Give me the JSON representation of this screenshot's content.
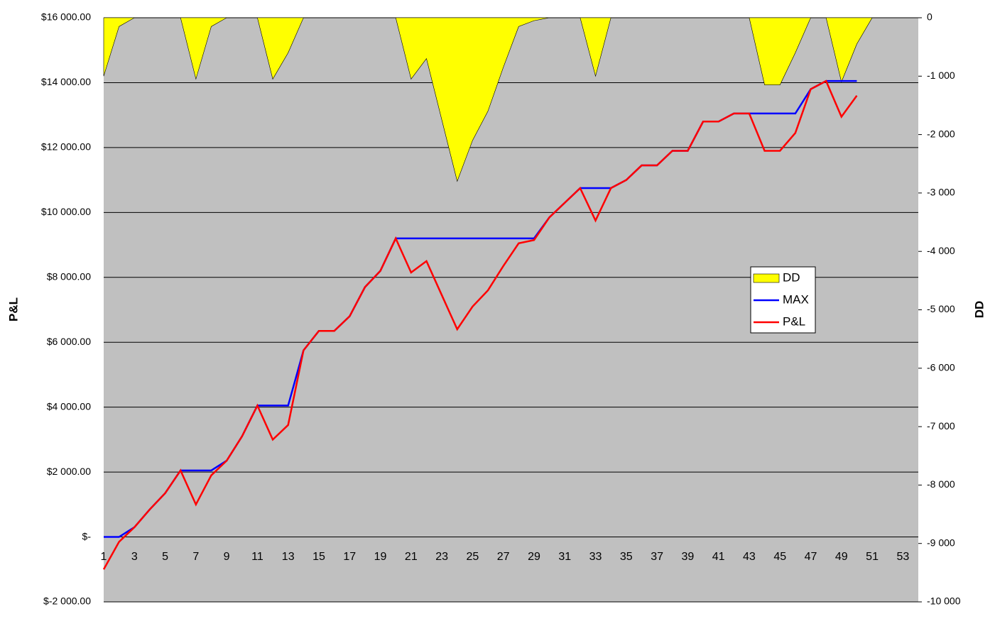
{
  "chart_data": {
    "type": "line",
    "categories": [
      1,
      null,
      3,
      null,
      5,
      null,
      7,
      null,
      9,
      null,
      11,
      null,
      13,
      null,
      15,
      null,
      17,
      null,
      19,
      null,
      21,
      null,
      23,
      null,
      25,
      null,
      27,
      null,
      29,
      null,
      31,
      null,
      33,
      null,
      35,
      null,
      37,
      null,
      39,
      null,
      41,
      null,
      43,
      null,
      45,
      null,
      47,
      null,
      49,
      null,
      51,
      null,
      53,
      null
    ],
    "ylabel": "P&L",
    "y2label": "DD",
    "ylim": [
      -2000,
      16000
    ],
    "yticks": [
      {
        "value": -2000,
        "label": "$-2 000.00"
      },
      {
        "value": 0,
        "label": "$-"
      },
      {
        "value": 2000,
        "label": "$2 000.00"
      },
      {
        "value": 4000,
        "label": "$4 000.00"
      },
      {
        "value": 6000,
        "label": "$6 000.00"
      },
      {
        "value": 8000,
        "label": "$8 000.00"
      },
      {
        "value": 10000,
        "label": "$10 000.00"
      },
      {
        "value": 12000,
        "label": "$12 000.00"
      },
      {
        "value": 14000,
        "label": "$14 000.00"
      },
      {
        "value": 16000,
        "label": "$16 000.00"
      }
    ],
    "y2lim": [
      -10000,
      0
    ],
    "y2ticks": [
      {
        "value": -10000,
        "label": "-10 000"
      },
      {
        "value": -9000,
        "label": "-9 000"
      },
      {
        "value": -8000,
        "label": "-8 000"
      },
      {
        "value": -7000,
        "label": "-7 000"
      },
      {
        "value": -6000,
        "label": "-6 000"
      },
      {
        "value": -5000,
        "label": "-5 000"
      },
      {
        "value": -4000,
        "label": "-4 000"
      },
      {
        "value": -3000,
        "label": "-3 000"
      },
      {
        "value": -2000,
        "label": "-2 000"
      },
      {
        "value": -1000,
        "label": "-1 000"
      },
      0
    ],
    "grid": true,
    "series": [
      {
        "name": "DD",
        "type": "area",
        "axis": "y2",
        "color": "#ffff00",
        "values": [
          -1000,
          -150,
          0,
          0,
          0,
          0,
          -1050,
          -150,
          0,
          0,
          0,
          -1050,
          -600,
          0,
          0,
          0,
          0,
          0,
          0,
          0,
          -1050,
          -700,
          -1750,
          -2800,
          -2100,
          -1600,
          -850,
          -150,
          -50,
          0,
          0,
          0,
          -1000,
          0,
          0,
          0,
          0,
          0,
          0,
          0,
          0,
          0,
          0,
          -1150,
          -1150,
          -600,
          0,
          0,
          -1100,
          -450,
          0,
          null,
          null,
          null
        ]
      },
      {
        "name": "MAX",
        "type": "line",
        "color": "#0000ff",
        "values": [
          0,
          0,
          300,
          850,
          1350,
          2050,
          2050,
          2050,
          2350,
          3100,
          4050,
          4050,
          4050,
          5750,
          6350,
          6350,
          6800,
          7700,
          8200,
          9200,
          9200,
          9200,
          9200,
          9200,
          9200,
          9200,
          9200,
          9200,
          9200,
          9850,
          10300,
          10750,
          10750,
          10750,
          11000,
          11450,
          11450,
          11900,
          11900,
          12800,
          12800,
          13050,
          13050,
          13050,
          13050,
          13050,
          13800,
          14050,
          14050,
          14050,
          null,
          null,
          null,
          null
        ]
      },
      {
        "name": "P&L",
        "type": "line",
        "color": "#ff0000",
        "values": [
          -1000,
          -150,
          300,
          850,
          1350,
          2050,
          1000,
          1900,
          2350,
          3100,
          4050,
          3000,
          3450,
          5750,
          6350,
          6350,
          6800,
          7700,
          8200,
          9200,
          8150,
          8500,
          7450,
          6400,
          7100,
          7600,
          8350,
          9050,
          9150,
          9850,
          10300,
          10750,
          9750,
          10750,
          11000,
          11450,
          11450,
          11900,
          11900,
          12800,
          12800,
          13050,
          13050,
          11900,
          11900,
          12450,
          13800,
          14050,
          12950,
          13600,
          null,
          null,
          null,
          null
        ]
      }
    ]
  }
}
